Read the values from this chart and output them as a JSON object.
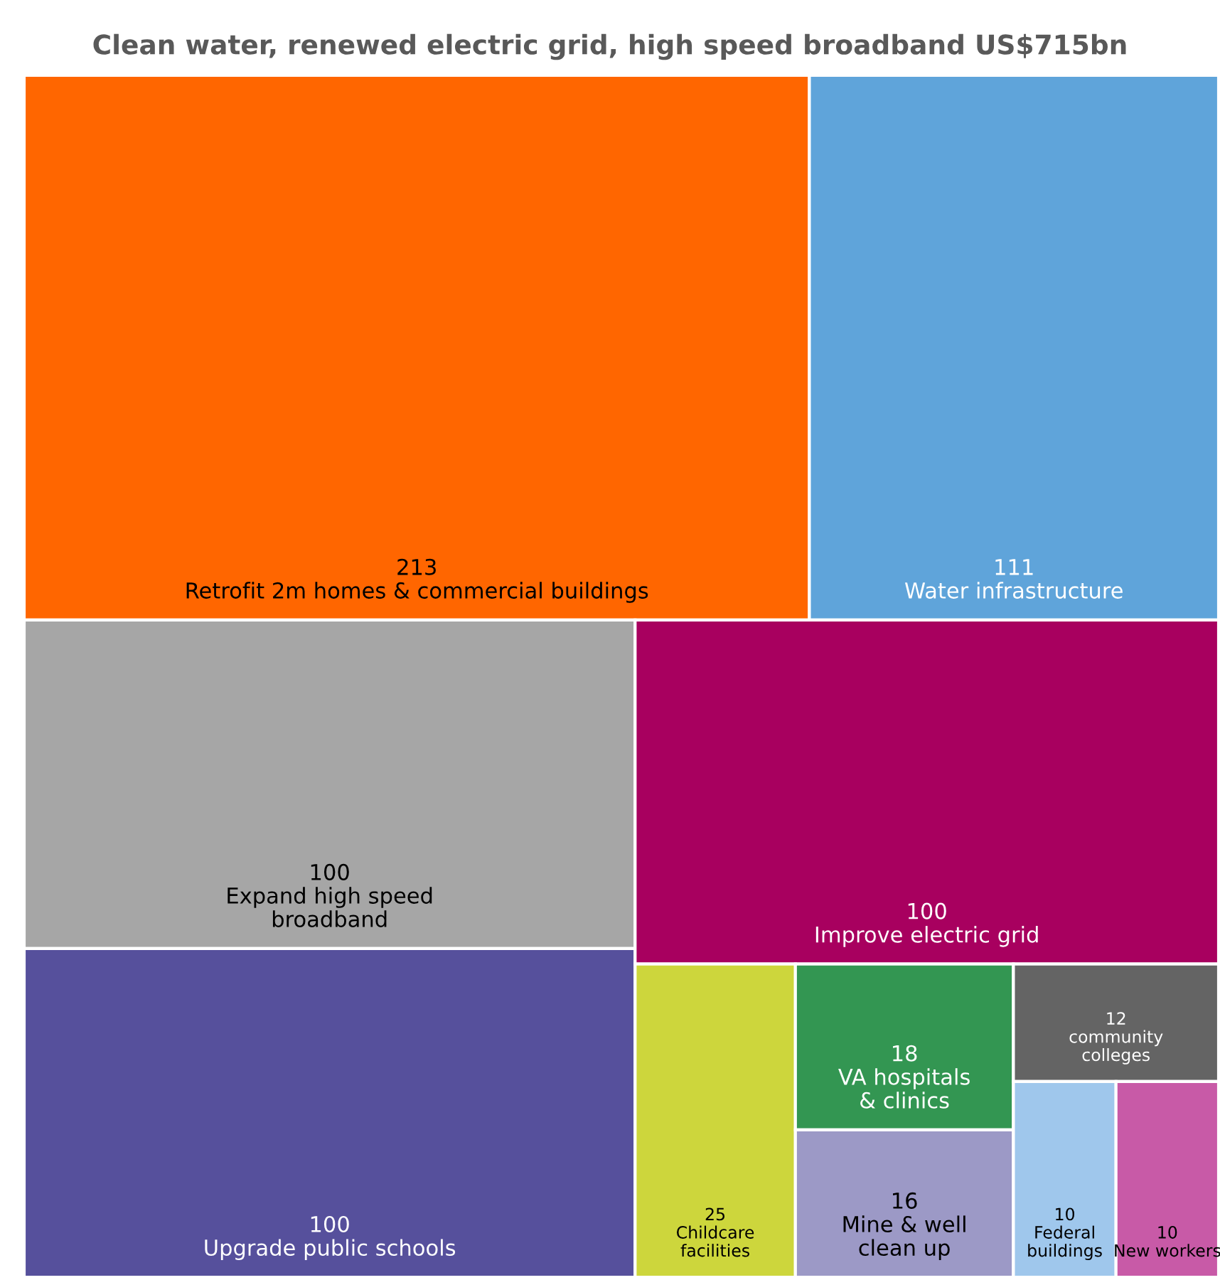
{
  "chart_data": {
    "type": "other",
    "title": "Clean water, renewed electric grid, high speed broadband US$715bn",
    "categories": [
      "Retrofit 2m homes & commercial buildings",
      "Water infrastructure",
      "Expand high speed\nbroadband",
      "Upgrade public schools",
      "Improve electric grid",
      "Childcare\nfacilities",
      "VA hospitals\n& clinics",
      "Mine & well\nclean up",
      "community\ncolleges",
      "Federal\nbuildings",
      "New workers"
    ],
    "values": [
      213,
      111,
      100,
      100,
      100,
      25,
      18,
      16,
      12,
      10,
      10
    ],
    "colors": [
      "#ff6600",
      "#5fa4da",
      "#a6a6a6",
      "#56509c",
      "#a8005f",
      "#cdd63c",
      "#339652",
      "#9c99c6",
      "#646464",
      "#9fc7ec",
      "#c85aa7"
    ],
    "data_labels": true
  }
}
